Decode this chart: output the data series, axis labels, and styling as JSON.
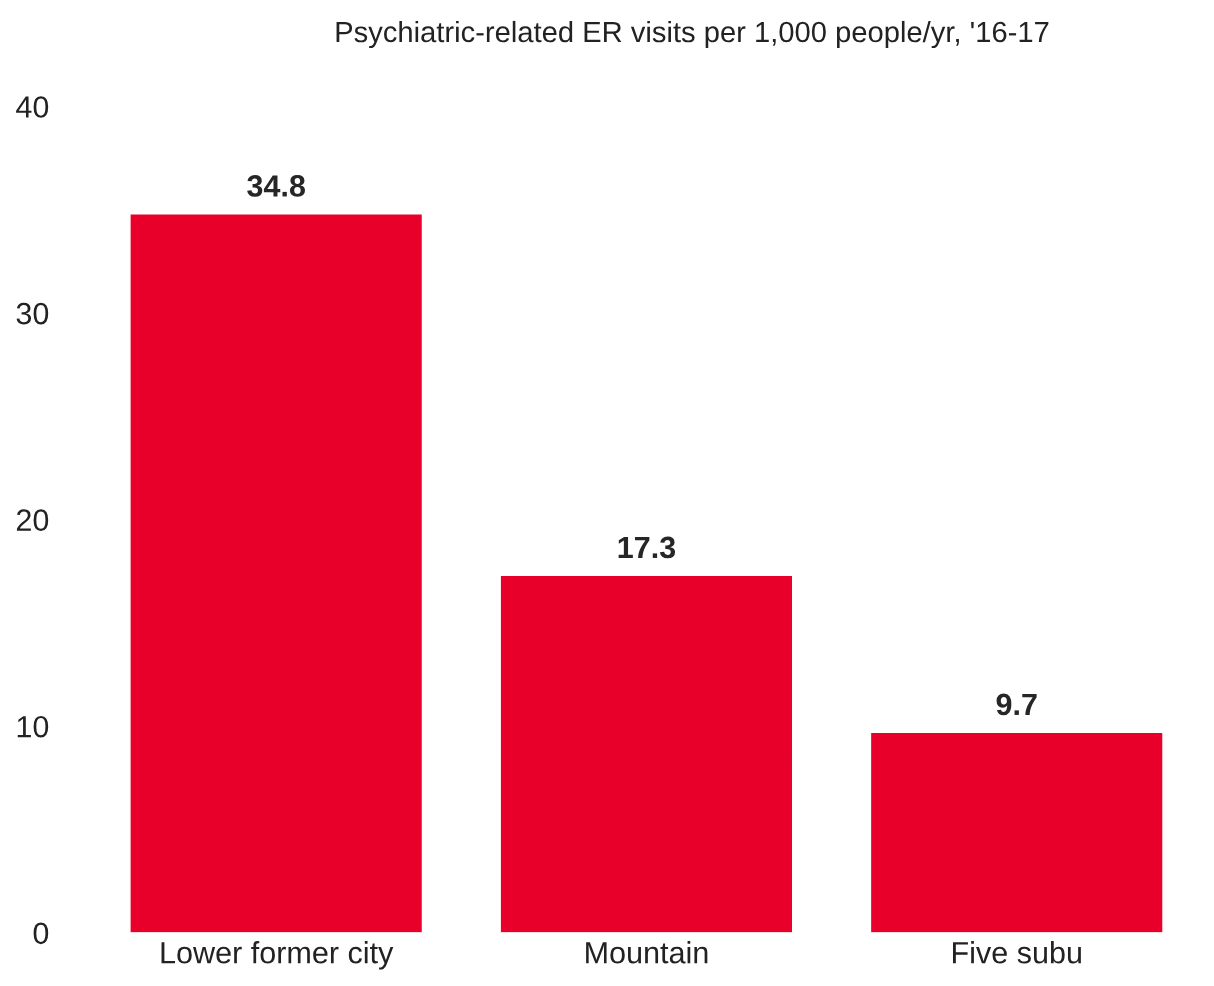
{
  "chart_data": {
    "type": "bar",
    "title": "Psychiatric-related ER visits per 1,000 people/yr, '16-17",
    "categories": [
      "Lower former city",
      "Mountain",
      "Five subu"
    ],
    "values": [
      34.8,
      17.3,
      9.7
    ],
    "color": "#e8002a",
    "ylim": [
      0,
      40
    ],
    "yticks": [
      0,
      10,
      20,
      30,
      40
    ],
    "grid": false,
    "data_labels": true
  }
}
